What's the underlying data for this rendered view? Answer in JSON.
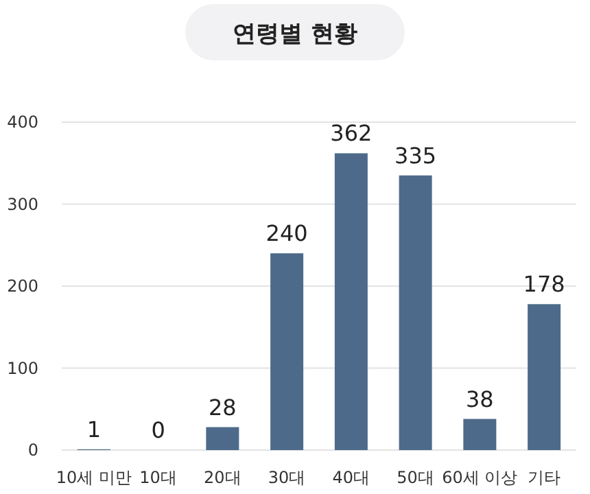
{
  "chart_data": {
    "type": "bar",
    "title": "연령별 현황",
    "categories": [
      "10세 미만",
      "10대",
      "20대",
      "30대",
      "40대",
      "50대",
      "60세 이상",
      "기타"
    ],
    "values": [
      1,
      0,
      28,
      240,
      362,
      335,
      38,
      178
    ],
    "color": "#4d6a8a",
    "ylim": [
      0,
      400
    ],
    "yticks": [
      0,
      100,
      200,
      300,
      400
    ],
    "grid": "y",
    "data_labels": true
  }
}
